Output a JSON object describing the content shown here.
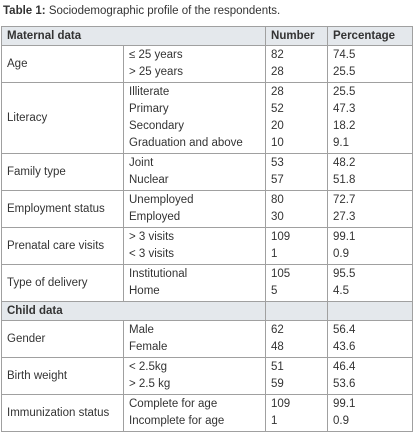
{
  "title": {
    "label": "Table 1:",
    "text": "Sociodemographic profile of the respondents."
  },
  "table": {
    "columns": [
      "Number",
      "Percentage"
    ],
    "sections": [
      {
        "heading": "Maternal data",
        "groups": [
          {
            "label": "Age",
            "rows": [
              [
                "≤ 25 years",
                82,
                74.5
              ],
              [
                "> 25 years",
                28,
                25.5
              ]
            ]
          },
          {
            "label": "Literacy",
            "rows": [
              [
                "Illiterate",
                28,
                25.5
              ],
              [
                "Primary",
                52,
                47.3
              ],
              [
                "Secondary",
                20,
                18.2
              ],
              [
                "Graduation and above",
                10,
                9.1
              ]
            ]
          },
          {
            "label": "Family type",
            "rows": [
              [
                "Joint",
                53,
                48.2
              ],
              [
                "Nuclear",
                57,
                51.8
              ]
            ]
          },
          {
            "label": "Employment status",
            "rows": [
              [
                "Unemployed",
                80,
                72.7
              ],
              [
                "Employed",
                30,
                27.3
              ]
            ]
          },
          {
            "label": "Prenatal care visits",
            "rows": [
              [
                "> 3 visits",
                109,
                99.1
              ],
              [
                "< 3 visits",
                1,
                0.9
              ]
            ]
          },
          {
            "label": "Type of delivery",
            "rows": [
              [
                "Institutional",
                105,
                95.5
              ],
              [
                "Home",
                5,
                4.5
              ]
            ]
          }
        ]
      },
      {
        "heading": "Child data",
        "groups": [
          {
            "label": "Gender",
            "rows": [
              [
                "Male",
                62,
                56.4
              ],
              [
                "Female",
                48,
                43.6
              ]
            ]
          },
          {
            "label": "Birth weight",
            "rows": [
              [
                "< 2.5kg",
                51,
                46.4
              ],
              [
                "> 2.5 kg",
                59,
                53.6
              ]
            ]
          },
          {
            "label": "Immunization status",
            "rows": [
              [
                "Complete for age",
                109,
                99.1
              ],
              [
                "Incomplete for age",
                1,
                0.9
              ]
            ]
          }
        ]
      }
    ]
  }
}
